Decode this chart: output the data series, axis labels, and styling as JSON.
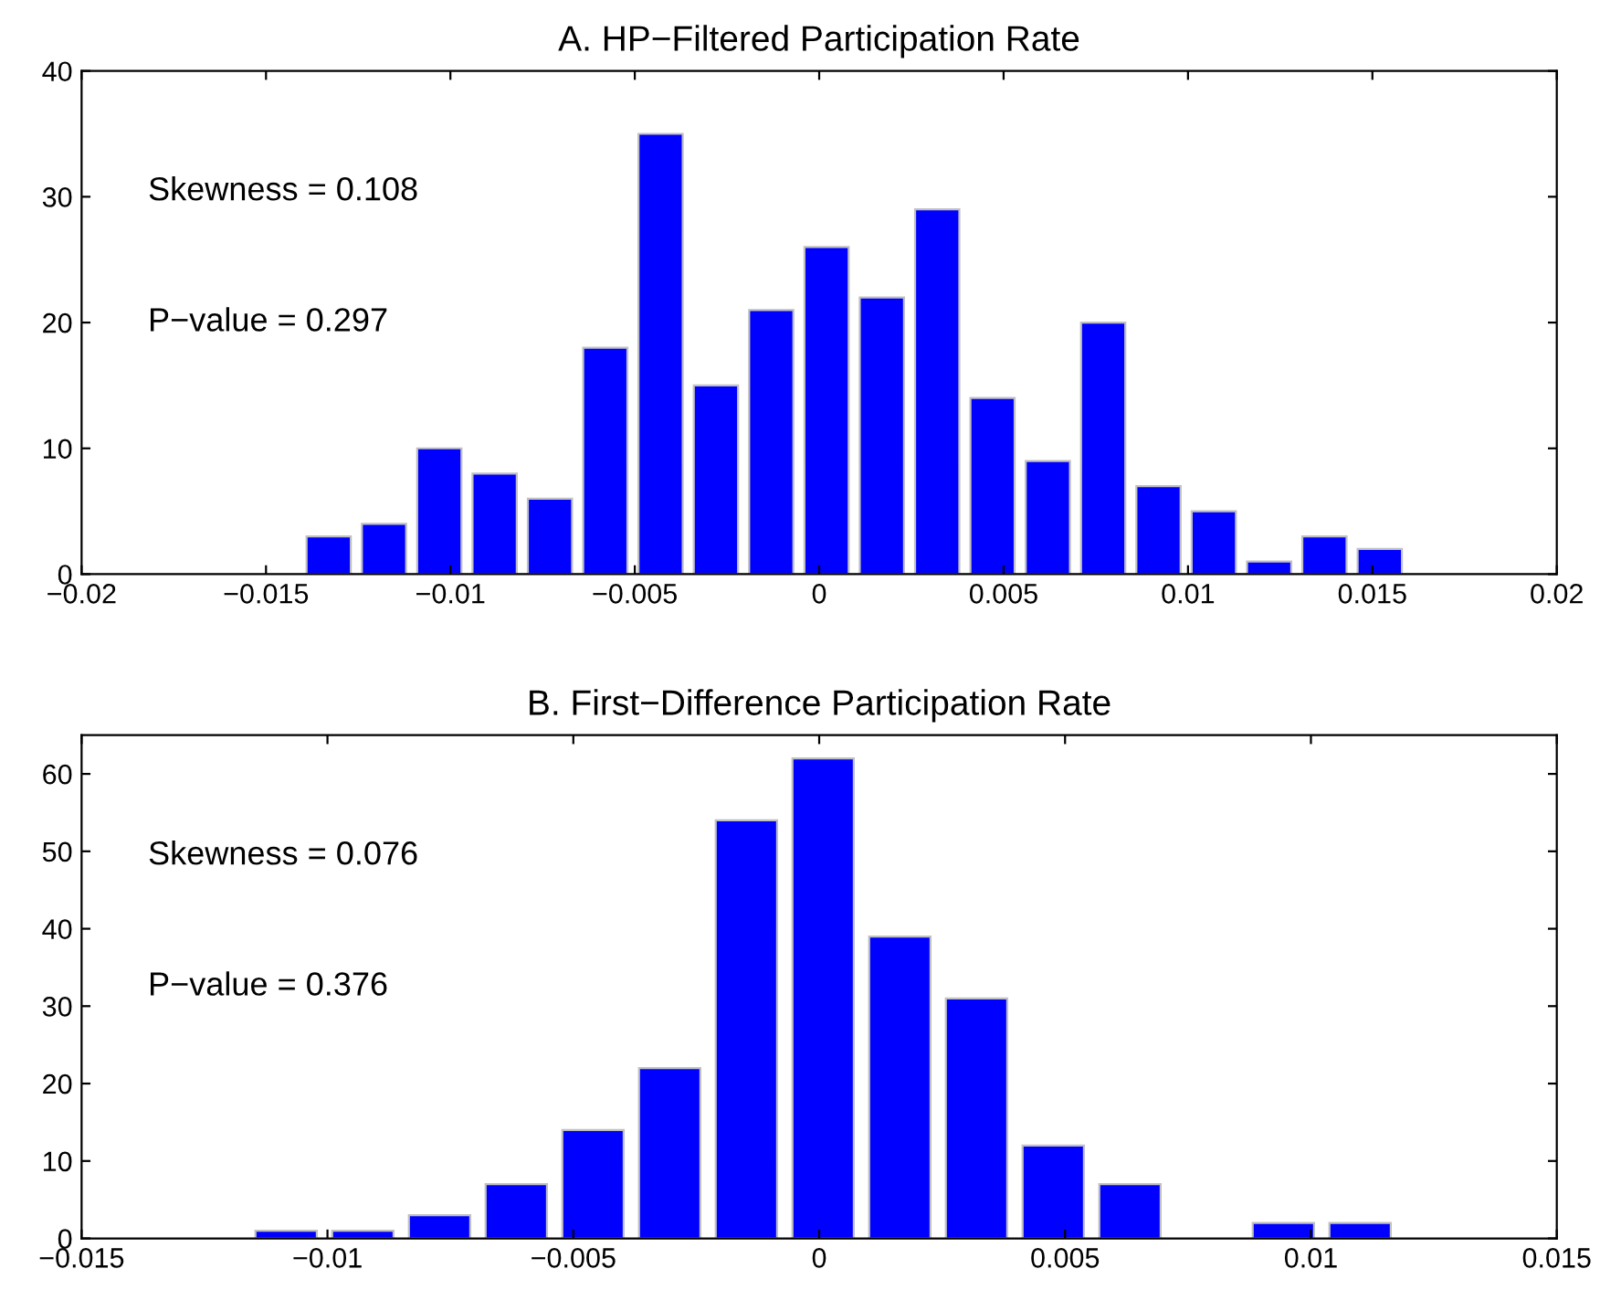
{
  "chart_data": [
    {
      "type": "histogram",
      "title": "A. HP−Filtered Participation Rate",
      "color": "#0000ff",
      "bins": [
        -0.01405,
        -0.01255,
        -0.01105,
        -0.00955,
        -0.00805,
        -0.00655,
        -0.00505,
        -0.00355,
        -0.00205,
        -0.00055,
        0.00095,
        0.00245,
        0.00395,
        0.00545,
        0.00695,
        0.00845,
        0.00995,
        0.01145,
        0.01295,
        0.01445,
        0.01595
      ],
      "values": [
        3,
        4,
        10,
        8,
        6,
        18,
        35,
        15,
        21,
        26,
        22,
        29,
        14,
        9,
        20,
        7,
        5,
        1,
        3,
        2
      ],
      "xlim": [
        -0.02,
        0.02
      ],
      "xticks": [
        -0.02,
        -0.015,
        -0.01,
        -0.005,
        0,
        0.005,
        0.01,
        0.015,
        0.02
      ],
      "ylim": [
        0,
        40
      ],
      "yticks": [
        0,
        10,
        20,
        30,
        40
      ],
      "annotations": [
        "Skewness = 0.108",
        "P−value = 0.297"
      ]
    },
    {
      "type": "histogram",
      "title": "B. First−Difference Participation Rate",
      "color": "#0000ff",
      "bins": [
        -0.01162,
        -0.01006,
        -0.0085,
        -0.00694,
        -0.00538,
        -0.00382,
        -0.00226,
        -0.0007,
        0.00086,
        0.00242,
        0.00398,
        0.00554,
        0.0071,
        0.00866,
        0.01022,
        0.01178
      ],
      "values": [
        1,
        1,
        3,
        7,
        14,
        22,
        54,
        62,
        39,
        31,
        12,
        7,
        0,
        2,
        2
      ],
      "xlim": [
        -0.015,
        0.015
      ],
      "xticks": [
        -0.015,
        -0.01,
        -0.005,
        0,
        0.005,
        0.01,
        0.015
      ],
      "ylim": [
        0,
        65
      ],
      "yticks": [
        0,
        10,
        20,
        30,
        40,
        50,
        60
      ],
      "annotations": [
        "Skewness = 0.076",
        "P−value = 0.376"
      ]
    }
  ]
}
